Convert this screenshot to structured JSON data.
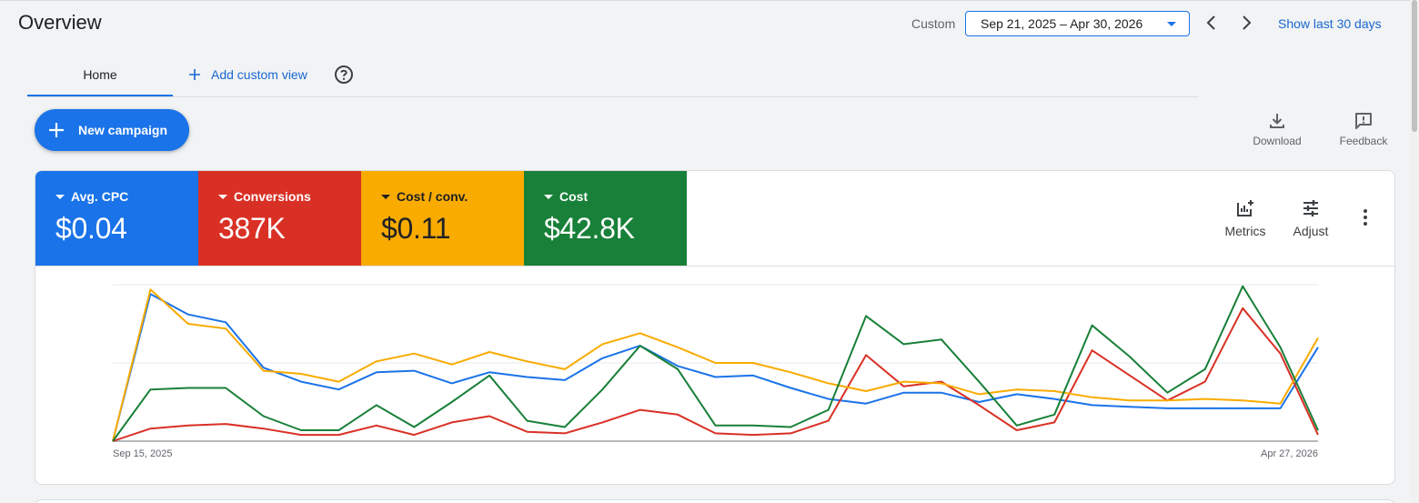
{
  "header": {
    "title": "Overview",
    "custom_label": "Custom",
    "date_range": "Sep 21, 2025 – Apr 30, 2026",
    "show_last_30": "Show last 30 days"
  },
  "tabs": {
    "home": "Home",
    "add_custom_view": "Add custom view"
  },
  "toolbar": {
    "new_campaign": "New campaign",
    "download": "Download",
    "feedback": "Feedback"
  },
  "metrics": [
    {
      "name": "Avg. CPC",
      "value": "$0.04",
      "color": "#1a73e8"
    },
    {
      "name": "Conversions",
      "value": "387K",
      "color": "#d93025"
    },
    {
      "name": "Cost / conv.",
      "value": "$0.11",
      "color": "#f9ab00"
    },
    {
      "name": "Cost",
      "value": "$42.8K",
      "color": "#188038"
    }
  ],
  "controls": {
    "metrics": "Metrics",
    "adjust": "Adjust"
  },
  "chart_data": {
    "type": "line",
    "x_start_label": "Sep 15, 2025",
    "x_end_label": "Apr 27, 2026",
    "y_scale": "normalized per series (no y-axis labels shown)",
    "grid": true,
    "series": [
      {
        "name": "Avg. CPC",
        "color": "#1a73e8",
        "values": [
          0,
          0.94,
          0.81,
          0.76,
          0.47,
          0.38,
          0.33,
          0.44,
          0.45,
          0.37,
          0.44,
          0.41,
          0.39,
          0.53,
          0.61,
          0.48,
          0.41,
          0.42,
          0.34,
          0.27,
          0.24,
          0.31,
          0.31,
          0.25,
          0.3,
          0.27,
          0.23,
          0.22,
          0.21,
          0.21,
          0.21,
          0.21,
          0.6
        ]
      },
      {
        "name": "Conversions",
        "color": "#d93025",
        "values": [
          0,
          0.08,
          0.1,
          0.11,
          0.08,
          0.04,
          0.04,
          0.1,
          0.04,
          0.12,
          0.16,
          0.06,
          0.05,
          0.12,
          0.2,
          0.17,
          0.05,
          0.04,
          0.05,
          0.13,
          0.55,
          0.35,
          0.38,
          0.23,
          0.07,
          0.12,
          0.58,
          0.42,
          0.26,
          0.38,
          0.85,
          0.56,
          0.04
        ]
      },
      {
        "name": "Cost / conv.",
        "color": "#f9ab00",
        "values": [
          0,
          0.97,
          0.75,
          0.72,
          0.45,
          0.43,
          0.38,
          0.51,
          0.56,
          0.49,
          0.57,
          0.51,
          0.46,
          0.62,
          0.69,
          0.6,
          0.5,
          0.5,
          0.44,
          0.37,
          0.32,
          0.38,
          0.37,
          0.3,
          0.33,
          0.32,
          0.28,
          0.26,
          0.26,
          0.27,
          0.26,
          0.24,
          0.66
        ]
      },
      {
        "name": "Cost",
        "color": "#188038",
        "values": [
          0,
          0.33,
          0.34,
          0.34,
          0.16,
          0.07,
          0.07,
          0.23,
          0.09,
          0.25,
          0.42,
          0.13,
          0.09,
          0.33,
          0.61,
          0.46,
          0.1,
          0.1,
          0.09,
          0.2,
          0.8,
          0.62,
          0.65,
          0.38,
          0.1,
          0.17,
          0.74,
          0.54,
          0.31,
          0.46,
          0.99,
          0.6,
          0.07
        ]
      }
    ]
  }
}
